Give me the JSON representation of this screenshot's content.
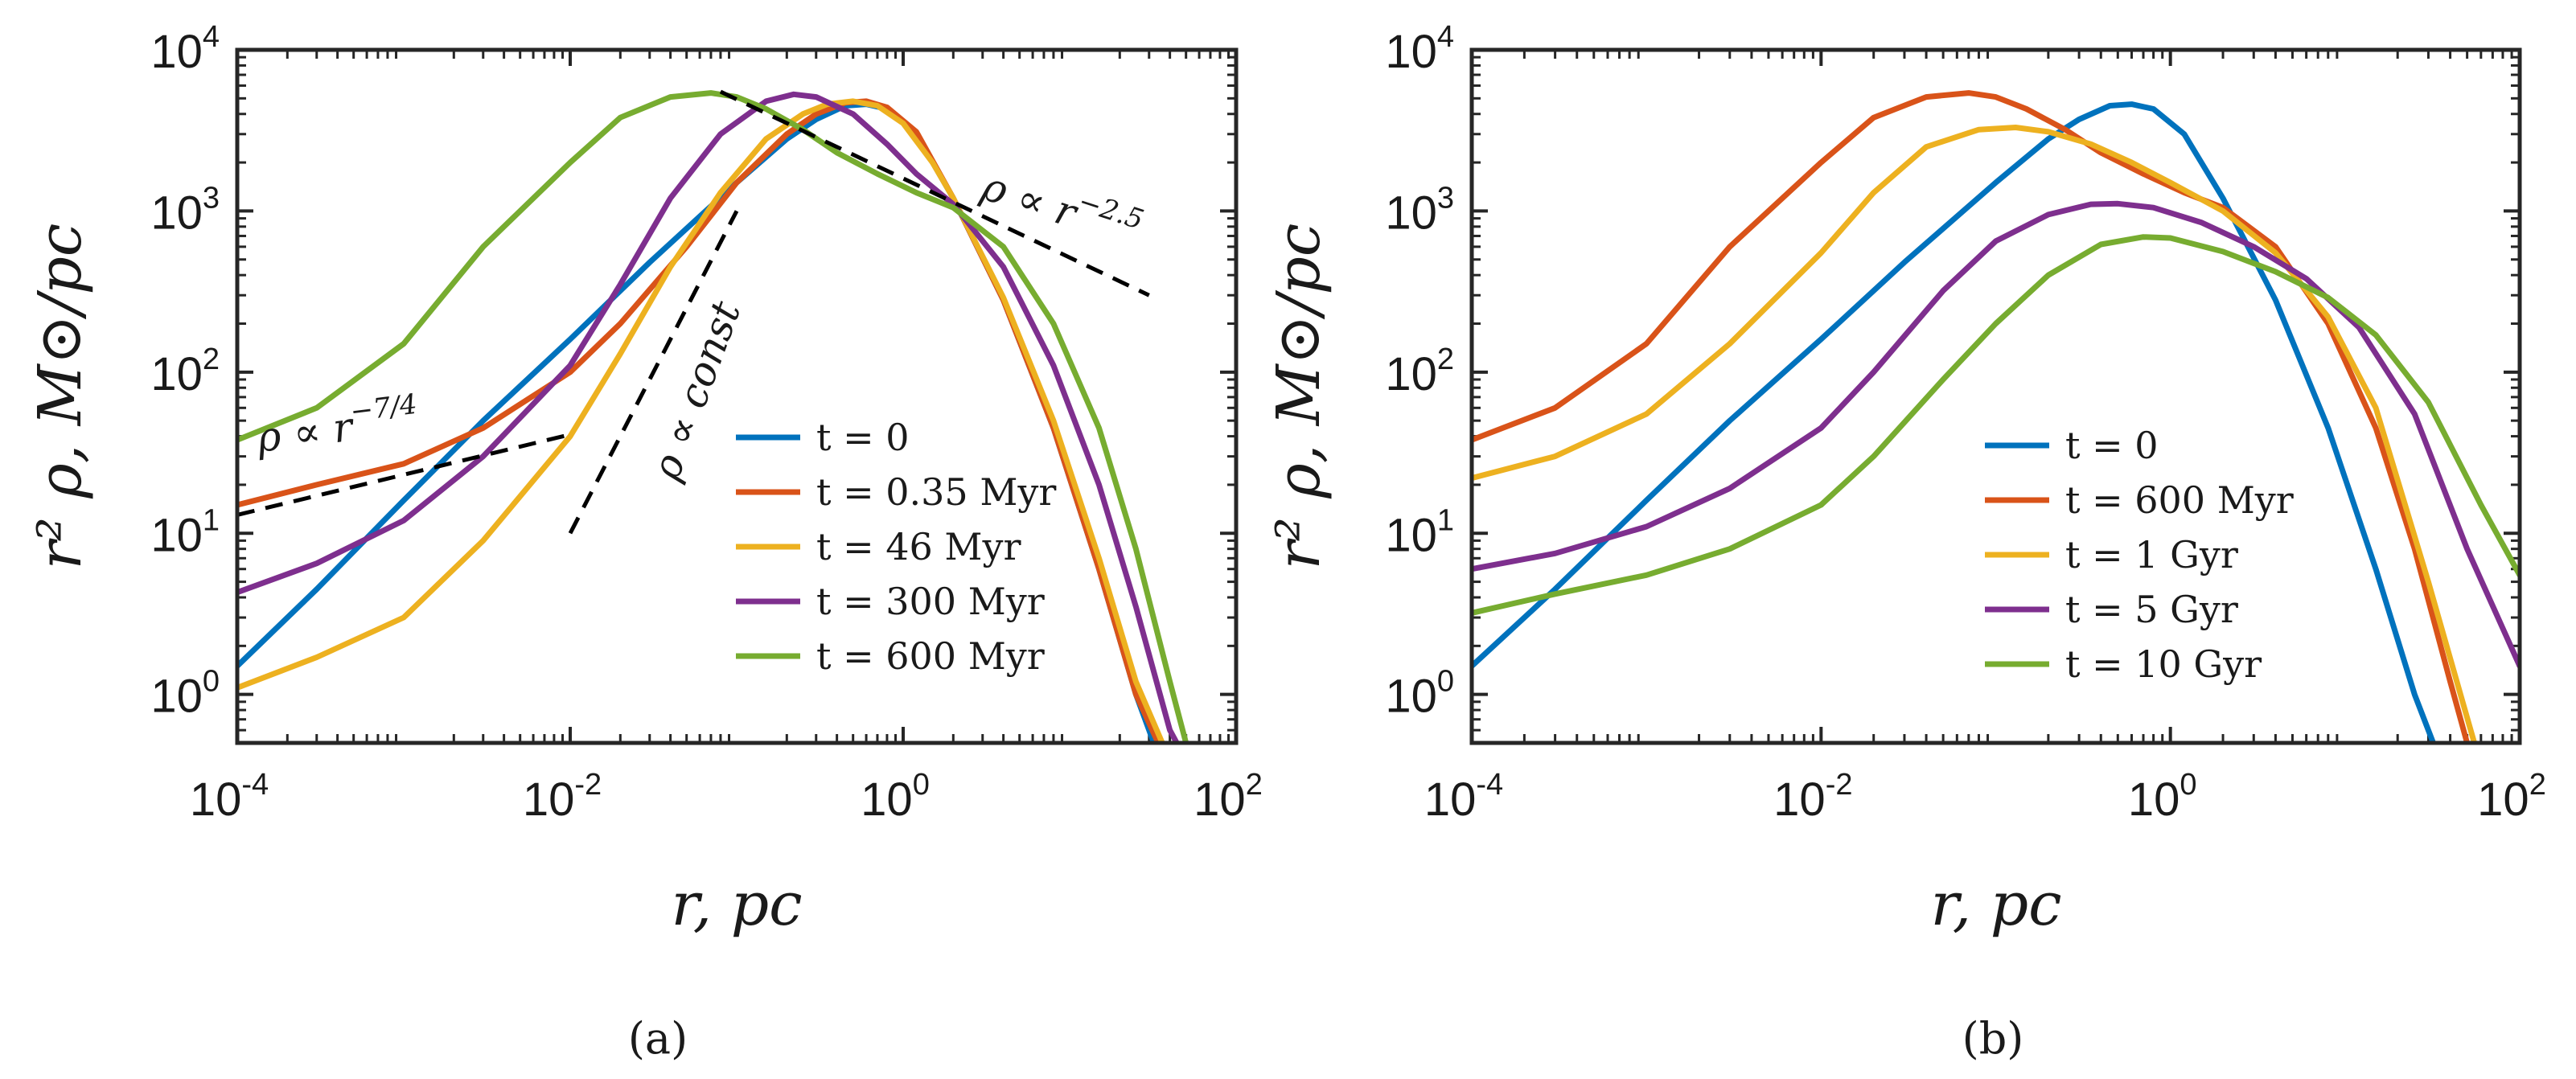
{
  "chart_data": [
    {
      "panel": "a",
      "panel_label": "(a)",
      "type": "line",
      "x_scale": "log",
      "y_scale": "log",
      "xlim": [
        0.0001,
        100
      ],
      "ylim": [
        0.5,
        10000
      ],
      "xlabel": "r, pc",
      "ylabel": "r² ρ, M⊙/pc",
      "x_ticks": [
        {
          "base": "10",
          "exp": "-4"
        },
        {
          "base": "10",
          "exp": "-2"
        },
        {
          "base": "10",
          "exp": "0"
        },
        {
          "base": "10",
          "exp": "2"
        }
      ],
      "y_ticks": [
        {
          "base": "10",
          "exp": "0"
        },
        {
          "base": "10",
          "exp": "1"
        },
        {
          "base": "10",
          "exp": "2"
        },
        {
          "base": "10",
          "exp": "3"
        },
        {
          "base": "10",
          "exp": "4"
        }
      ],
      "x_tick_values": [
        0.0001,
        0.01,
        1,
        100
      ],
      "y_tick_values": [
        1,
        10,
        100,
        1000,
        10000
      ],
      "legend_position": "lower-right",
      "series": [
        {
          "name": "t = 0",
          "color": "#0072BD",
          "x": [
            0.0001,
            0.0003,
            0.001,
            0.003,
            0.01,
            0.03,
            0.1,
            0.2,
            0.3,
            0.45,
            0.6,
            0.8,
            1.2,
            2,
            4,
            8,
            15,
            25,
            32
          ],
          "y": [
            1.5,
            4.5,
            16,
            50,
            160,
            480,
            1500,
            2800,
            3700,
            4500,
            4600,
            4300,
            3000,
            1200,
            280,
            45,
            6,
            1,
            0.5
          ]
        },
        {
          "name": "t = 0.35 Myr",
          "color": "#D95319",
          "x": [
            0.0001,
            0.0003,
            0.001,
            0.003,
            0.01,
            0.02,
            0.05,
            0.1,
            0.2,
            0.3,
            0.45,
            0.6,
            0.8,
            1.2,
            2,
            4,
            8,
            15,
            25,
            34
          ],
          "y": [
            15,
            20,
            27,
            45,
            100,
            200,
            600,
            1500,
            3000,
            4000,
            4700,
            4800,
            4400,
            3100,
            1200,
            280,
            45,
            6,
            1,
            0.5
          ]
        },
        {
          "name": "t = 46 Myr",
          "color": "#EDB120",
          "x": [
            0.0001,
            0.0003,
            0.001,
            0.003,
            0.01,
            0.02,
            0.04,
            0.08,
            0.15,
            0.25,
            0.35,
            0.5,
            0.7,
            1,
            1.5,
            2,
            4,
            8,
            15,
            25,
            36
          ],
          "y": [
            1.1,
            1.7,
            3,
            9,
            40,
            130,
            450,
            1300,
            2800,
            4000,
            4600,
            4800,
            4500,
            3500,
            2000,
            1200,
            290,
            50,
            7,
            1.2,
            0.5
          ]
        },
        {
          "name": "t = 300 Myr",
          "color": "#7E2F8E",
          "x": [
            0.0001,
            0.0003,
            0.001,
            0.003,
            0.01,
            0.02,
            0.04,
            0.08,
            0.15,
            0.22,
            0.3,
            0.5,
            0.8,
            1.2,
            2,
            4,
            8,
            15,
            25,
            40,
            44
          ],
          "y": [
            4.3,
            6.5,
            12,
            30,
            110,
            350,
            1200,
            3000,
            4800,
            5300,
            5100,
            4000,
            2600,
            1700,
            1100,
            450,
            110,
            20,
            3.5,
            0.6,
            0.5
          ]
        },
        {
          "name": "t = 600 Myr",
          "color": "#77AC30",
          "x": [
            0.0001,
            0.0003,
            0.001,
            0.003,
            0.01,
            0.02,
            0.04,
            0.07,
            0.1,
            0.15,
            0.25,
            0.4,
            0.7,
            1.2,
            2,
            4,
            8,
            15,
            25,
            40,
            50
          ],
          "y": [
            38,
            60,
            150,
            600,
            2000,
            3800,
            5100,
            5400,
            5100,
            4300,
            3200,
            2300,
            1700,
            1300,
            1050,
            600,
            200,
            45,
            8,
            1.2,
            0.5
          ]
        }
      ],
      "guides": [
        {
          "label_prefix": "ρ ∝ r",
          "label_exp": "−7/4",
          "x": [
            0.0001,
            0.01
          ],
          "y": [
            13,
            41
          ]
        },
        {
          "label": "ρ ∝ const",
          "x": [
            0.01,
            0.1
          ],
          "y": [
            10,
            1000
          ]
        },
        {
          "label_prefix": "ρ ∝ r",
          "label_exp": "−2.5",
          "x": [
            0.08,
            30
          ],
          "y": [
            5500,
            300
          ]
        }
      ]
    },
    {
      "panel": "b",
      "panel_label": "(b)",
      "type": "line",
      "x_scale": "log",
      "y_scale": "log",
      "xlim": [
        0.0001,
        100
      ],
      "ylim": [
        0.5,
        10000
      ],
      "xlabel": "r, pc",
      "ylabel": "r² ρ, M⊙/pc",
      "x_ticks": [
        {
          "base": "10",
          "exp": "-4"
        },
        {
          "base": "10",
          "exp": "-2"
        },
        {
          "base": "10",
          "exp": "0"
        },
        {
          "base": "10",
          "exp": "2"
        }
      ],
      "y_ticks": [
        {
          "base": "10",
          "exp": "0"
        },
        {
          "base": "10",
          "exp": "1"
        },
        {
          "base": "10",
          "exp": "2"
        },
        {
          "base": "10",
          "exp": "3"
        },
        {
          "base": "10",
          "exp": "4"
        }
      ],
      "x_tick_values": [
        0.0001,
        0.01,
        1,
        100
      ],
      "y_tick_values": [
        1,
        10,
        100,
        1000,
        10000
      ],
      "legend_position": "lower-right",
      "series": [
        {
          "name": "t = 0",
          "color": "#0072BD",
          "x": [
            0.0001,
            0.0003,
            0.001,
            0.003,
            0.01,
            0.03,
            0.1,
            0.2,
            0.3,
            0.45,
            0.6,
            0.8,
            1.2,
            2,
            4,
            8,
            15,
            25,
            32
          ],
          "y": [
            1.5,
            4.5,
            16,
            50,
            160,
            480,
            1500,
            2800,
            3700,
            4500,
            4600,
            4300,
            3000,
            1200,
            280,
            45,
            6,
            1,
            0.5
          ]
        },
        {
          "name": "t = 600 Myr",
          "color": "#D95319",
          "x": [
            0.0001,
            0.0003,
            0.001,
            0.003,
            0.01,
            0.02,
            0.04,
            0.07,
            0.1,
            0.15,
            0.25,
            0.4,
            0.7,
            1.2,
            2,
            4,
            8,
            15,
            25,
            40,
            50
          ],
          "y": [
            38,
            60,
            150,
            600,
            2000,
            3800,
            5100,
            5400,
            5100,
            4300,
            3200,
            2300,
            1700,
            1300,
            1050,
            600,
            200,
            45,
            8,
            1.2,
            0.5
          ]
        },
        {
          "name": "t = 1 Gyr",
          "color": "#EDB120",
          "x": [
            0.0001,
            0.0003,
            0.001,
            0.003,
            0.01,
            0.02,
            0.04,
            0.08,
            0.13,
            0.2,
            0.35,
            0.6,
            1,
            2,
            4,
            8,
            15,
            30,
            55
          ],
          "y": [
            22,
            30,
            55,
            150,
            550,
            1300,
            2500,
            3200,
            3300,
            3100,
            2600,
            2000,
            1500,
            1000,
            550,
            220,
            60,
            5,
            0.5
          ]
        },
        {
          "name": "t = 5 Gyr",
          "color": "#7E2F8E",
          "x": [
            0.0001,
            0.0003,
            0.001,
            0.003,
            0.01,
            0.02,
            0.05,
            0.1,
            0.2,
            0.35,
            0.5,
            0.8,
            1.5,
            3,
            6,
            12,
            25,
            50,
            100
          ],
          "y": [
            6,
            7.5,
            11,
            19,
            45,
            100,
            320,
            650,
            950,
            1100,
            1110,
            1050,
            850,
            600,
            380,
            190,
            55,
            8,
            1.5
          ]
        },
        {
          "name": "t = 10 Gyr",
          "color": "#77AC30",
          "x": [
            0.0001,
            0.0003,
            0.001,
            0.003,
            0.01,
            0.02,
            0.05,
            0.1,
            0.2,
            0.4,
            0.7,
            1,
            2,
            4,
            8,
            15,
            30,
            60,
            100
          ],
          "y": [
            3.2,
            4.2,
            5.5,
            8,
            15,
            30,
            90,
            200,
            400,
            620,
            690,
            680,
            560,
            420,
            290,
            170,
            65,
            15,
            5.5
          ]
        }
      ]
    }
  ]
}
